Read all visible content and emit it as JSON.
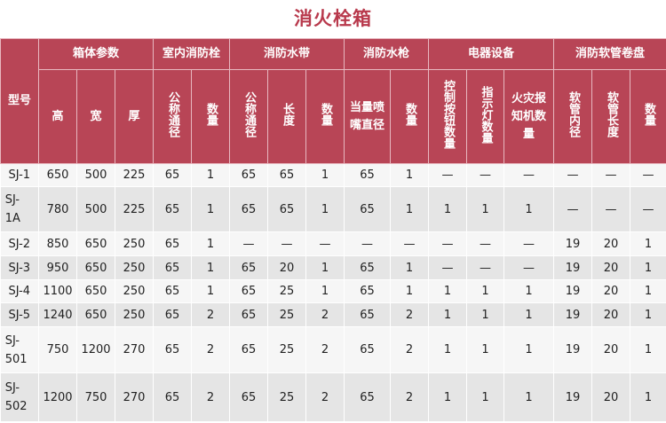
{
  "title": "消火栓箱",
  "header": {
    "model": "型号",
    "groups": [
      "箱体参数",
      "室内消防栓",
      "消防水带",
      "消防水枪",
      "电器设备",
      "消防软管卷盘"
    ],
    "columns": [
      "高",
      "宽",
      "厚",
      "公称通径",
      "数量",
      "公称通径",
      "长度",
      "数量",
      "当量喷嘴直径",
      "数量",
      "控制按钮数量",
      "指示灯数量",
      "火灾报知机数量",
      "软管内径",
      "软管长度",
      "数量"
    ]
  },
  "rows": [
    {
      "model": "SJ-1",
      "values": [
        "650",
        "500",
        "225",
        "65",
        "1",
        "65",
        "65",
        "1",
        "65",
        "1",
        "—",
        "—",
        "—",
        "—",
        "—",
        "—"
      ]
    },
    {
      "model": "SJ-1A",
      "values": [
        "780",
        "500",
        "225",
        "65",
        "1",
        "65",
        "65",
        "1",
        "65",
        "1",
        "1",
        "1",
        "1",
        "—",
        "—",
        "—"
      ]
    },
    {
      "model": "SJ-2",
      "values": [
        "850",
        "650",
        "250",
        "65",
        "1",
        "—",
        "—",
        "—",
        "—",
        "—",
        "—",
        "—",
        "—",
        "19",
        "20",
        "1"
      ]
    },
    {
      "model": "SJ-3",
      "values": [
        "950",
        "650",
        "250",
        "65",
        "1",
        "65",
        "20",
        "1",
        "65",
        "1",
        "—",
        "—",
        "—",
        "19",
        "20",
        "1"
      ]
    },
    {
      "model": "SJ-4",
      "values": [
        "1100",
        "650",
        "250",
        "65",
        "1",
        "65",
        "25",
        "1",
        "65",
        "1",
        "1",
        "1",
        "1",
        "19",
        "20",
        "1"
      ]
    },
    {
      "model": "SJ-5",
      "values": [
        "1240",
        "650",
        "250",
        "65",
        "2",
        "65",
        "25",
        "2",
        "65",
        "2",
        "1",
        "1",
        "1",
        "19",
        "20",
        "1"
      ]
    },
    {
      "model": "SJ-501",
      "values": [
        "750",
        "1200",
        "270",
        "65",
        "2",
        "65",
        "25",
        "2",
        "65",
        "2",
        "1",
        "1",
        "1",
        "19",
        "20",
        "1"
      ]
    },
    {
      "model": "SJ-502",
      "values": [
        "1200",
        "750",
        "270",
        "65",
        "2",
        "65",
        "25",
        "2",
        "65",
        "2",
        "1",
        "1",
        "1",
        "19",
        "20",
        "1"
      ]
    }
  ],
  "colors": {
    "header": "#b84556",
    "title": "#b8394c",
    "row_light": "#f6f6f6",
    "row_dark": "#e5e5e5"
  }
}
